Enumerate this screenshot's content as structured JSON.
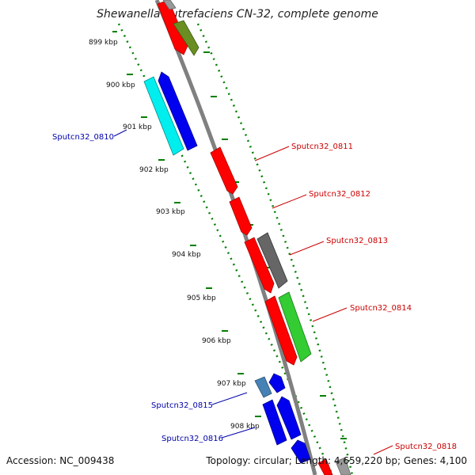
{
  "title": "Shewanella putrefaciens CN-32, complete genome",
  "footer": {
    "accession": "Accession: NC_009438",
    "summary": "Topology: circular; Length: 4,659,220 bp; Genes: 4,100"
  },
  "ticks": [
    {
      "label": "899 kbp"
    },
    {
      "label": "900 kbp"
    },
    {
      "label": "901 kbp"
    },
    {
      "label": "902 kbp"
    },
    {
      "label": "903 kbp"
    },
    {
      "label": "904 kbp"
    },
    {
      "label": "905 kbp"
    },
    {
      "label": "906 kbp"
    },
    {
      "label": "907 kbp"
    },
    {
      "label": "908 kbp"
    }
  ],
  "gene_labels": [
    {
      "text": "Sputcn32_0810",
      "strand": "reverse"
    },
    {
      "text": "Sputcn32_0811",
      "strand": "forward"
    },
    {
      "text": "Sputcn32_0812",
      "strand": "forward"
    },
    {
      "text": "Sputcn32_0813",
      "strand": "forward"
    },
    {
      "text": "Sputcn32_0814",
      "strand": "forward"
    },
    {
      "text": "Sputcn32_0815",
      "strand": "reverse"
    },
    {
      "text": "Sputcn32_0816",
      "strand": "reverse"
    },
    {
      "text": "Sputcn32_0818",
      "strand": "forward"
    }
  ],
  "colors": {
    "forward_label": "#cc0000",
    "reverse_label": "#0000aa",
    "backbone": "#808080",
    "dotted_track": "#008000",
    "red": "#ff0000",
    "blue": "#0000ee",
    "cyan": "#00eeee",
    "olive": "#6b8e23",
    "gray": "#666666",
    "green": "#33cc33",
    "steel": "#4682b4"
  }
}
